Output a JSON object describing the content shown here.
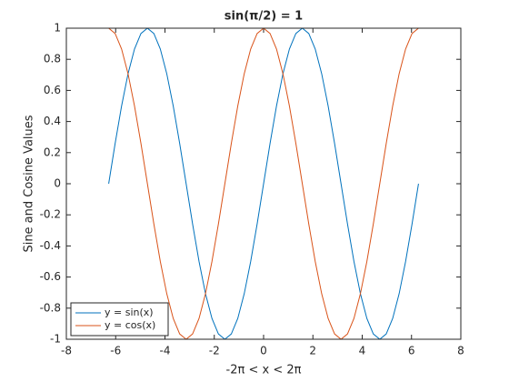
{
  "chart_data": {
    "type": "line",
    "title": "sin(π/2) = 1",
    "x_label": "-2π < x < 2π",
    "y_label": "Sine and Cosine Values",
    "x": [
      -6.2832,
      -6.0214,
      -5.7596,
      -5.4978,
      -5.236,
      -4.9742,
      -4.7124,
      -4.4506,
      -4.1888,
      -3.927,
      -3.6652,
      -3.4034,
      -3.1416,
      -2.8798,
      -2.618,
      -2.3562,
      -2.0944,
      -1.8326,
      -1.5708,
      -1.309,
      -1.0472,
      -0.7854,
      -0.5236,
      -0.2618,
      0,
      0.2618,
      0.5236,
      0.7854,
      1.0472,
      1.309,
      1.5708,
      1.8326,
      2.0944,
      2.3562,
      2.618,
      2.8798,
      3.1416,
      3.4034,
      3.6652,
      3.927,
      4.1888,
      4.4506,
      4.7124,
      4.9742,
      5.236,
      5.4978,
      5.7596,
      6.0214,
      6.2832
    ],
    "series": [
      {
        "name": "y = sin(x)",
        "color": "#0072bd",
        "values": [
          0,
          0.2588,
          0.5,
          0.7071,
          0.866,
          0.9659,
          1,
          0.9659,
          0.866,
          0.7071,
          0.5,
          0.2588,
          0,
          -0.2588,
          -0.5,
          -0.7071,
          -0.866,
          -0.9659,
          -1,
          -0.9659,
          -0.866,
          -0.7071,
          -0.5,
          -0.2588,
          0,
          0.2588,
          0.5,
          0.7071,
          0.866,
          0.9659,
          1,
          0.9659,
          0.866,
          0.7071,
          0.5,
          0.2588,
          0,
          -0.2588,
          -0.5,
          -0.7071,
          -0.866,
          -0.9659,
          -1,
          -0.9659,
          -0.866,
          -0.7071,
          -0.5,
          -0.2588,
          0
        ]
      },
      {
        "name": "y = cos(x)",
        "color": "#d95319",
        "values": [
          1,
          0.9659,
          0.866,
          0.7071,
          0.5,
          0.2588,
          0,
          -0.2588,
          -0.5,
          -0.7071,
          -0.866,
          -0.9659,
          -1,
          -0.9659,
          -0.866,
          -0.7071,
          -0.5,
          -0.2588,
          0,
          0.2588,
          0.5,
          0.7071,
          0.866,
          0.9659,
          1,
          0.9659,
          0.866,
          0.7071,
          0.5,
          0.2588,
          0,
          -0.2588,
          -0.5,
          -0.7071,
          -0.866,
          -0.9659,
          -1,
          -0.9659,
          -0.866,
          -0.7071,
          -0.5,
          -0.2588,
          0,
          0.2588,
          0.5,
          0.7071,
          0.866,
          0.9659,
          1
        ]
      }
    ],
    "xlim": [
      -8,
      8
    ],
    "xticks": [
      -8,
      -6,
      -4,
      -2,
      0,
      2,
      4,
      6,
      8
    ],
    "ylim": [
      -1,
      1
    ],
    "yticks": [
      -1,
      -0.8,
      -0.6,
      -0.4,
      -0.2,
      0,
      0.2,
      0.4,
      0.6,
      0.8,
      1
    ],
    "legend": "southwest",
    "grid": false
  }
}
